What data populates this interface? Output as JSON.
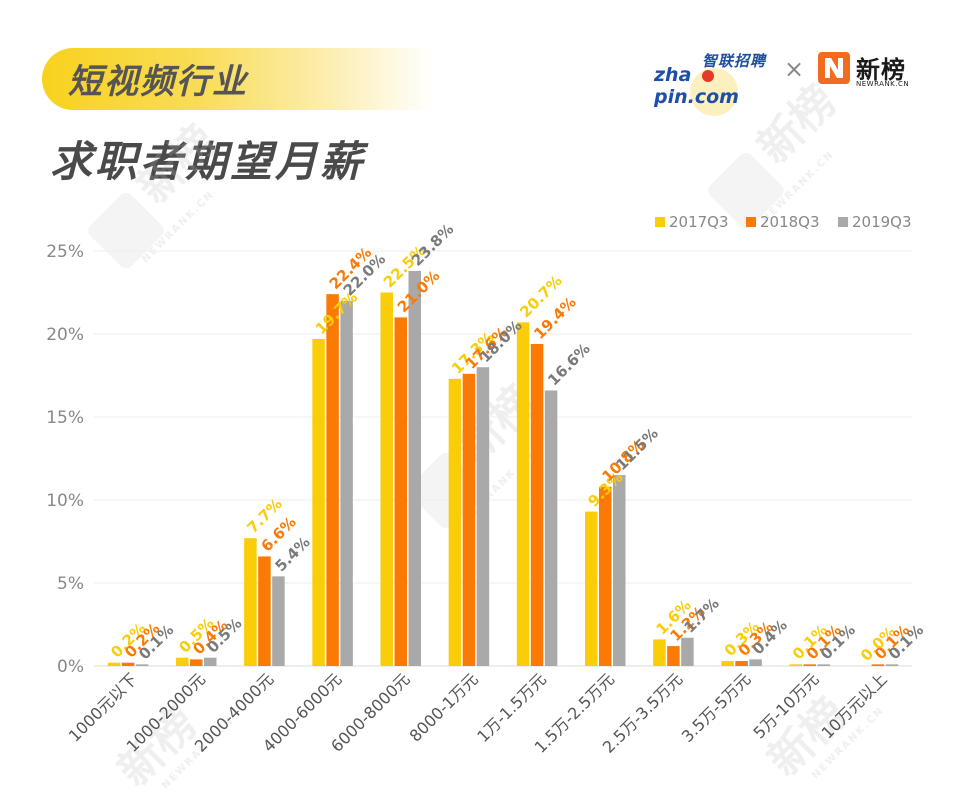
{
  "header": {
    "tag": "短视频行业",
    "title": "求职者期望月薪"
  },
  "logos": {
    "zhaopin_cn": "智联招聘",
    "zhaopin_en_left": "zha",
    "zhaopin_en_right": "pin.com",
    "separator": "×",
    "newrank_cn": "新榜",
    "newrank_en": "NEWRANK.CN"
  },
  "watermark": {
    "cn": "新榜",
    "en": "NEWRANK.CN"
  },
  "colors": {
    "series_2017": "#f9cd08",
    "series_2018": "#fb7a05",
    "series_2019": "#a9a9a9",
    "label_2019": "#7a7a7a",
    "grid": "#eeeeee",
    "axis_text": "#888888"
  },
  "chart_data": {
    "type": "bar",
    "categories": [
      "1000元以下",
      "1000-2000元",
      "2000-4000元",
      "4000-6000元",
      "6000-8000元",
      "8000-1万元",
      "1万-1.5万元",
      "1.5万-2.5万元",
      "2.5万-3.5万元",
      "3.5万-5万元",
      "5万-10万元",
      "10万元以上"
    ],
    "series": [
      {
        "name": "2017Q3",
        "values": [
          0.2,
          0.5,
          7.7,
          19.7,
          22.5,
          17.3,
          20.7,
          9.3,
          1.6,
          0.3,
          0.1,
          0.0
        ]
      },
      {
        "name": "2018Q3",
        "values": [
          0.2,
          0.4,
          6.6,
          22.4,
          21.0,
          17.6,
          19.4,
          10.8,
          1.2,
          0.3,
          0.1,
          0.1
        ]
      },
      {
        "name": "2019Q3",
        "values": [
          0.1,
          0.5,
          5.4,
          22.0,
          23.8,
          18.0,
          16.6,
          11.5,
          1.7,
          0.4,
          0.1,
          0.1
        ]
      }
    ],
    "yticks": [
      "0%",
      "5%",
      "10%",
      "15%",
      "20%",
      "25%"
    ],
    "ylim": [
      0,
      25
    ],
    "unit": "%",
    "legend_position": "top-right",
    "grid": true
  }
}
